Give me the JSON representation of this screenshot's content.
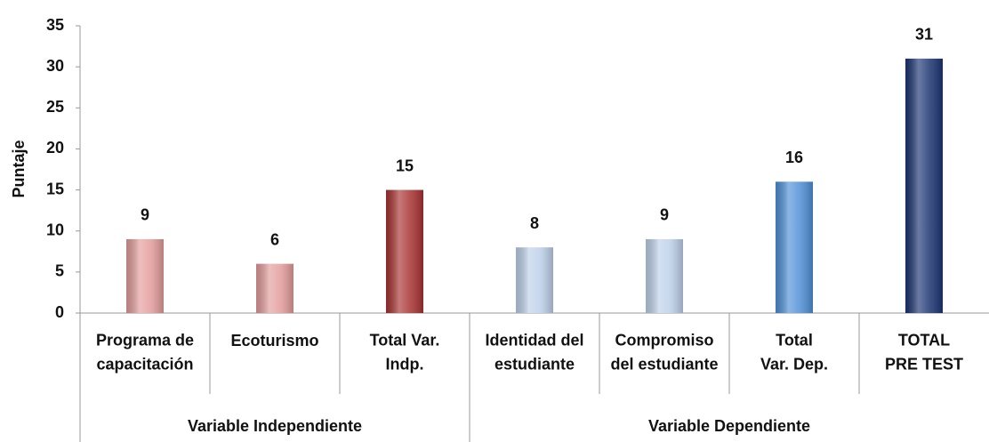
{
  "chart_data": {
    "type": "bar",
    "ylabel": "Puntaje",
    "ylim": [
      0,
      35
    ],
    "yticks": [
      0,
      5,
      10,
      15,
      20,
      25,
      30,
      35
    ],
    "groups": [
      {
        "name": "Variable Independiente",
        "categories": [
          [
            "Programa de",
            "capacitación"
          ],
          [
            "Ecoturismo"
          ],
          [
            "Total Var.",
            "Indp."
          ]
        ],
        "values": [
          9,
          6,
          15
        ],
        "colors": [
          "#e39c9c",
          "#e39c9c",
          "#a83232"
        ]
      },
      {
        "name": "Variable Dependiente",
        "categories": [
          [
            "Identidad del",
            "estudiante"
          ],
          [
            "Compromiso",
            "del estudiante"
          ],
          [
            "Total",
            "Var. Dep."
          ],
          [
            "TOTAL",
            "PRE TEST"
          ]
        ],
        "values": [
          8,
          9,
          16,
          31
        ],
        "colors": [
          "#bdd0e9",
          "#bdd0e9",
          "#4f8fd6",
          "#1b3471"
        ]
      }
    ]
  }
}
